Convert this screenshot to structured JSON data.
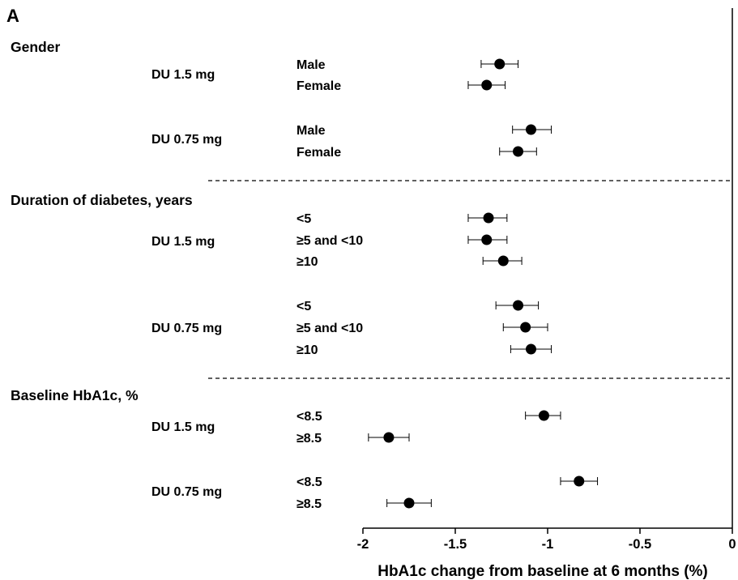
{
  "chart_data": {
    "type": "scatter",
    "panel_label": "A",
    "xlabel": "HbA1c change from baseline at 6 months (%)",
    "xlim": [
      -2,
      0
    ],
    "xticks": [
      -2,
      -1.5,
      -1,
      -0.5,
      0
    ],
    "xtick_labels": [
      "-2",
      "-1.5",
      "-1",
      "-0.5",
      "0"
    ],
    "groups": [
      {
        "title": "Gender",
        "arms": [
          {
            "dose": "DU 1.5 mg",
            "rows": [
              {
                "label": "Male",
                "value": -1.26,
                "ci": [
                  -1.36,
                  -1.16
                ]
              },
              {
                "label": "Female",
                "value": -1.33,
                "ci": [
                  -1.43,
                  -1.23
                ]
              }
            ]
          },
          {
            "dose": "DU 0.75 mg",
            "rows": [
              {
                "label": "Male",
                "value": -1.09,
                "ci": [
                  -1.19,
                  -0.98
                ]
              },
              {
                "label": "Female",
                "value": -1.16,
                "ci": [
                  -1.26,
                  -1.06
                ]
              }
            ]
          }
        ]
      },
      {
        "title": "Duration of diabetes, years",
        "arms": [
          {
            "dose": "DU 1.5 mg",
            "rows": [
              {
                "label": "<5",
                "value": -1.32,
                "ci": [
                  -1.43,
                  -1.22
                ]
              },
              {
                "label": "≥5 and <10",
                "value": -1.33,
                "ci": [
                  -1.43,
                  -1.22
                ]
              },
              {
                "label": "≥10",
                "value": -1.24,
                "ci": [
                  -1.35,
                  -1.14
                ]
              }
            ]
          },
          {
            "dose": "DU 0.75 mg",
            "rows": [
              {
                "label": "<5",
                "value": -1.16,
                "ci": [
                  -1.28,
                  -1.05
                ]
              },
              {
                "label": "≥5 and <10",
                "value": -1.12,
                "ci": [
                  -1.24,
                  -1.0
                ]
              },
              {
                "label": "≥10",
                "value": -1.09,
                "ci": [
                  -1.2,
                  -0.98
                ]
              }
            ]
          }
        ]
      },
      {
        "title": "Baseline HbA1c, %",
        "arms": [
          {
            "dose": "DU 1.5 mg",
            "rows": [
              {
                "label": "<8.5",
                "value": -1.02,
                "ci": [
                  -1.12,
                  -0.93
                ]
              },
              {
                "label": "≥8.5",
                "value": -1.86,
                "ci": [
                  -1.97,
                  -1.75
                ]
              }
            ]
          },
          {
            "dose": "DU 0.75 mg",
            "rows": [
              {
                "label": "<8.5",
                "value": -0.83,
                "ci": [
                  -0.93,
                  -0.73
                ]
              },
              {
                "label": "≥8.5",
                "value": -1.75,
                "ci": [
                  -1.87,
                  -1.63
                ]
              }
            ]
          }
        ]
      }
    ],
    "marker": "filled-circle",
    "error_bars": "horizontal-95ci",
    "group_separator": "dashed",
    "grid": false,
    "legend": false
  }
}
